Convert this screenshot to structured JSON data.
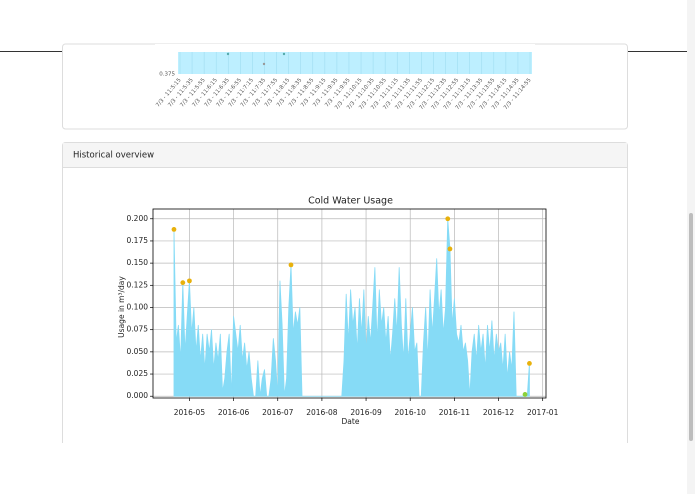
{
  "top_chart": {
    "y_label": "0.375",
    "x_labels": [
      "7/3 - 11:5:15",
      "7/3 - 11:5:35",
      "7/3 - 11:5:55",
      "7/3 - 11:6:15",
      "7/3 - 11:6:35",
      "7/3 - 11:6:55",
      "7/3 - 11:7:15",
      "7/3 - 11:7:35",
      "7/3 - 11:7:55",
      "7/3 - 11:8:15",
      "7/3 - 11:8:35",
      "7/3 - 11:8:55",
      "7/3 - 11:9:15",
      "7/3 - 11:9:35",
      "7/3 - 11:9:55",
      "7/3 - 11:10:15",
      "7/3 - 11:10:35",
      "7/3 - 11:10:55",
      "7/3 - 11:11:15",
      "7/3 - 11:11:35",
      "7/3 - 11:11:55",
      "7/3 - 11:12:15",
      "7/3 - 11:12:35",
      "7/3 - 11:12:55",
      "7/3 - 11:13:15",
      "7/3 - 11:13:35",
      "7/3 - 11:13:55",
      "7/3 - 11:14:15",
      "7/3 - 11:14:35",
      "7/3 - 11:14:55"
    ]
  },
  "panel": {
    "title": "Historical overview"
  },
  "chart_data": {
    "type": "area",
    "title": "Cold Water Usage",
    "x_label": "Date",
    "y_label": "Usage in m³/day",
    "categories": [
      null,
      null,
      null,
      null,
      null,
      null,
      null,
      null,
      null,
      null,
      null,
      null,
      null,
      null,
      null,
      null,
      "2016-05",
      null,
      null,
      null,
      null,
      null,
      null,
      null,
      null,
      null,
      null,
      null,
      null,
      null,
      null,
      null,
      null,
      null,
      null,
      null,
      "2016-06",
      null,
      null,
      null,
      null,
      null,
      null,
      null,
      null,
      null,
      null,
      null,
      null,
      null,
      null,
      null,
      null,
      null,
      null,
      null,
      "2016-07",
      null,
      null,
      null,
      null,
      null,
      null,
      null,
      null,
      null,
      null,
      null,
      null,
      null,
      null,
      null,
      null,
      null,
      null,
      null,
      "2016-08",
      null,
      null,
      null,
      null,
      null,
      null,
      null,
      null,
      null,
      null,
      null,
      null,
      null,
      null,
      null,
      null,
      null,
      null,
      null,
      "2016-09",
      null,
      null,
      null,
      null,
      null,
      null,
      null,
      null,
      null,
      null,
      null,
      null,
      null,
      null,
      null,
      null,
      null,
      null,
      null,
      "2016-10",
      null,
      null,
      null,
      null,
      null,
      null,
      null,
      null,
      null,
      null,
      null,
      null,
      null,
      null,
      null,
      null,
      null,
      null,
      null,
      "2016-11",
      null,
      null,
      null,
      null,
      null,
      null,
      null,
      null,
      null,
      null,
      null,
      null,
      null,
      null,
      null,
      null,
      null,
      null,
      null,
      "2016-12",
      null,
      null,
      null,
      null,
      null,
      null,
      null,
      null,
      null,
      null,
      null,
      null,
      null,
      null,
      null,
      null,
      null,
      null,
      null,
      "2017-01",
      null
    ],
    "series": [
      {
        "kind": "area",
        "color": "#86dbf6",
        "values": [
          null,
          null,
          null,
          null,
          null,
          null,
          null,
          null,
          null,
          0.188,
          0.06,
          0.08,
          0.04,
          0.128,
          0.05,
          0.09,
          0.13,
          0.07,
          0.1,
          0.05,
          0.08,
          0.04,
          0.07,
          0.03,
          0.07,
          0.05,
          0.075,
          0.03,
          0.06,
          0.04,
          0.07,
          0.005,
          0.02,
          0.05,
          0.07,
          0,
          0.09,
          0.07,
          0.05,
          0.08,
          0.04,
          0.06,
          0.03,
          0.05,
          0.02,
          0,
          0,
          0.04,
          0,
          0.02,
          0.03,
          0,
          0,
          0.02,
          0.065,
          0.04,
          0,
          0.13,
          0.08,
          0,
          0.02,
          0.1,
          0.148,
          0.07,
          0.095,
          0.08,
          0.1,
          0,
          0,
          0,
          0,
          0,
          0,
          0,
          0,
          0,
          0,
          0,
          0,
          0,
          0,
          0,
          0,
          0,
          0,
          0,
          0.04,
          0.115,
          0.06,
          0.12,
          0.08,
          0.1,
          0.05,
          0.11,
          0.07,
          0.12,
          0.05,
          0.09,
          0.06,
          0.1,
          0.145,
          0.06,
          0.12,
          0.08,
          0.1,
          0.06,
          0.09,
          0.04,
          0.07,
          0.11,
          0.07,
          0.145,
          0.08,
          0.04,
          0.11,
          0.04,
          0.07,
          0.1,
          0.05,
          0.06,
          0,
          0,
          0.06,
          0.1,
          0.04,
          0.12,
          0.07,
          0.11,
          0.155,
          0.09,
          0.12,
          0.07,
          0.1,
          0.2,
          0.166,
          0.08,
          0.11,
          0.07,
          0.06,
          0.08,
          0.05,
          0.06,
          0.04,
          0,
          0.05,
          0.07,
          0.04,
          0.08,
          0.05,
          0.07,
          0.03,
          0.08,
          0.05,
          0.085,
          0.04,
          0.07,
          0.05,
          0.06,
          0.03,
          0.07,
          0.02,
          0.05,
          0.03,
          0.095,
          0,
          0,
          0,
          0,
          0.002,
          0,
          0.037,
          null,
          null,
          null,
          null,
          null,
          null,
          null
        ]
      },
      {
        "kind": "points",
        "color": "#e8b10c",
        "values": [
          null,
          null,
          null,
          null,
          null,
          null,
          null,
          null,
          null,
          0.188,
          null,
          null,
          null,
          0.128,
          null,
          null,
          0.13,
          null,
          null,
          null,
          null,
          null,
          null,
          null,
          null,
          null,
          null,
          null,
          null,
          null,
          null,
          null,
          null,
          null,
          null,
          null,
          null,
          null,
          null,
          null,
          null,
          null,
          null,
          null,
          null,
          null,
          null,
          null,
          null,
          null,
          null,
          null,
          null,
          null,
          null,
          null,
          null,
          null,
          null,
          null,
          null,
          null,
          0.148,
          null,
          null,
          null,
          null,
          null,
          null,
          null,
          null,
          null,
          null,
          null,
          null,
          null,
          null,
          null,
          null,
          null,
          null,
          null,
          null,
          null,
          null,
          null,
          null,
          null,
          null,
          null,
          null,
          null,
          null,
          null,
          null,
          null,
          null,
          null,
          null,
          null,
          null,
          null,
          null,
          null,
          null,
          null,
          null,
          null,
          null,
          null,
          null,
          null,
          null,
          null,
          null,
          null,
          null,
          null,
          null,
          null,
          null,
          null,
          null,
          null,
          null,
          null,
          null,
          null,
          null,
          null,
          null,
          null,
          null,
          0.2,
          0.166,
          null,
          null,
          null,
          null,
          null,
          null,
          null,
          null,
          null,
          null,
          null,
          null,
          null,
          null,
          null,
          null,
          null,
          null,
          null,
          null,
          null,
          null,
          null,
          null,
          null,
          null,
          null,
          null,
          null,
          null,
          null,
          null,
          null,
          null,
          null,
          0.037,
          null,
          null,
          null,
          null,
          null,
          null,
          null
        ]
      },
      {
        "kind": "points",
        "color": "#8bd13a",
        "values": [
          null,
          null,
          null,
          null,
          null,
          null,
          null,
          null,
          null,
          null,
          null,
          null,
          null,
          null,
          null,
          null,
          null,
          null,
          null,
          null,
          null,
          null,
          null,
          null,
          null,
          null,
          null,
          null,
          null,
          null,
          null,
          null,
          null,
          null,
          null,
          null,
          null,
          null,
          null,
          null,
          null,
          null,
          null,
          null,
          null,
          null,
          null,
          null,
          null,
          null,
          null,
          null,
          null,
          null,
          null,
          null,
          null,
          null,
          null,
          null,
          null,
          null,
          null,
          null,
          null,
          null,
          null,
          null,
          null,
          null,
          null,
          null,
          null,
          null,
          null,
          null,
          null,
          null,
          null,
          null,
          null,
          null,
          null,
          null,
          null,
          null,
          null,
          null,
          null,
          null,
          null,
          null,
          null,
          null,
          null,
          null,
          null,
          null,
          null,
          null,
          null,
          null,
          null,
          null,
          null,
          null,
          null,
          null,
          null,
          null,
          null,
          null,
          null,
          null,
          null,
          null,
          null,
          null,
          null,
          null,
          null,
          null,
          null,
          null,
          null,
          null,
          null,
          null,
          null,
          null,
          null,
          null,
          null,
          null,
          null,
          null,
          null,
          null,
          null,
          null,
          null,
          null,
          null,
          null,
          null,
          null,
          null,
          null,
          null,
          null,
          null,
          null,
          null,
          null,
          null,
          null,
          null,
          null,
          null,
          null,
          null,
          null,
          null,
          null,
          null,
          null,
          null,
          null,
          0.002,
          null,
          null,
          null,
          null,
          null,
          null,
          null,
          null,
          null
        ]
      }
    ],
    "ylim": [
      -0.002,
      0.211
    ],
    "yticks": [
      {
        "value": 0,
        "label": "0.000"
      },
      0.025,
      {
        "value": 0.05,
        "label": "0.050"
      },
      0.075,
      {
        "value": 0.1,
        "label": "0.100"
      },
      0.125,
      {
        "value": 0.15,
        "label": "0.150"
      },
      0.175,
      {
        "value": 0.2,
        "label": "0.200"
      }
    ],
    "grid": true
  }
}
